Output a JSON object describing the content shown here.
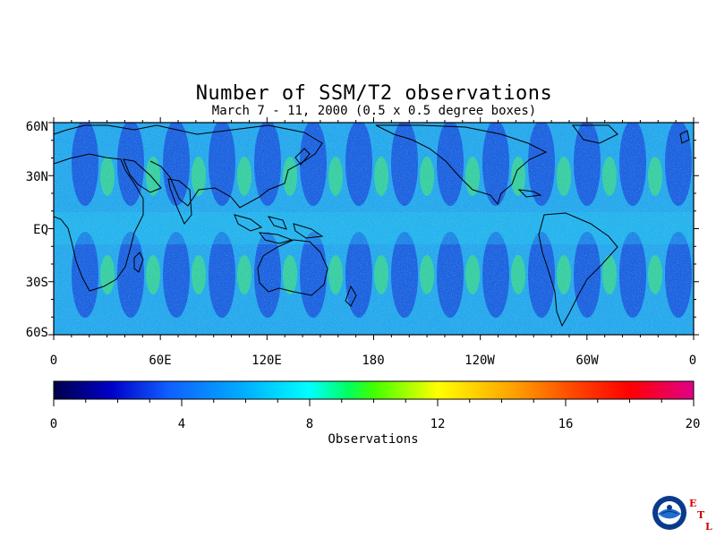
{
  "title": "Number of SSM/T2 observations",
  "subtitle": "March 7 - 11, 2000 (0.5 x 0.5 degree boxes)",
  "map": {
    "lat_ticks": [
      "60N",
      "30N",
      "EQ",
      "30S",
      "60S"
    ],
    "lon_ticks": [
      "0",
      "60E",
      "120E",
      "180",
      "120W",
      "60W",
      "0"
    ]
  },
  "colorbar": {
    "title": "Observations",
    "ticks": [
      "0",
      "4",
      "8",
      "12",
      "16",
      "20"
    ],
    "range": [
      0,
      20
    ],
    "colors": [
      "#00004a",
      "#0000c8",
      "#1060ff",
      "#00b0ff",
      "#00ffff",
      "#00ff60",
      "#40ff00",
      "#ffff00",
      "#ffa000",
      "#ff4000",
      "#ff0000",
      "#e0008a"
    ]
  },
  "logo": {
    "name": "NOAA",
    "letters": [
      "E",
      "T",
      "L"
    ]
  },
  "colors": {
    "land_outline": "#000000",
    "field_low": "#1a3cd8",
    "field_mid": "#26c8f0",
    "field_high": "#48e870"
  }
}
